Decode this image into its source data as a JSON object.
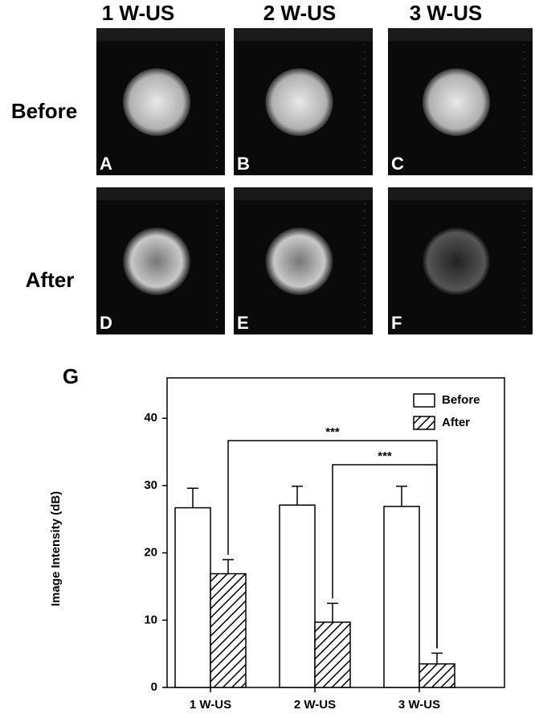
{
  "figure": {
    "column_titles": [
      "1 W-US",
      "2 W-US",
      "3 W-US"
    ],
    "row_labels": [
      "Before",
      "After"
    ],
    "panel_letters": [
      [
        "A",
        "B",
        "C"
      ],
      [
        "D",
        "E",
        "F"
      ]
    ]
  },
  "chart_data": {
    "type": "bar",
    "panel_label": "G",
    "y_label": "Image Intensity (dB)",
    "categories": [
      "1 W-US",
      "2 W-US",
      "3 W-US"
    ],
    "series": [
      {
        "name": "Before",
        "color": "#ffffff",
        "pattern": "solid",
        "values": [
          26.7,
          27.1,
          26.9
        ],
        "errors": [
          2.9,
          2.8,
          3.0
        ]
      },
      {
        "name": "After",
        "color": "#ffffff",
        "pattern": "hatch",
        "values": [
          16.9,
          9.7,
          3.5
        ],
        "errors": [
          2.1,
          2.8,
          1.6
        ]
      }
    ],
    "ylim": [
      0,
      46
    ],
    "yticks": [
      0,
      10,
      20,
      30,
      40
    ],
    "grid": false,
    "legend": "upper right",
    "annotations": [
      {
        "text": "***",
        "from": 0,
        "to": 2
      },
      {
        "text": "***",
        "from": 1,
        "to": 2
      }
    ]
  }
}
